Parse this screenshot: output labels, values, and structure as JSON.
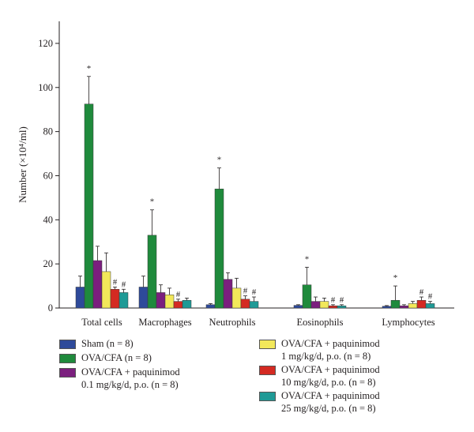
{
  "chart_data": {
    "type": "bar",
    "ylabel": "Number (×10⁴/ml)",
    "ylim": [
      0,
      130
    ],
    "yticks": [
      0,
      20,
      40,
      60,
      80,
      100,
      120
    ],
    "grid": false,
    "legend_position": "bottom",
    "categories": [
      "Total cells",
      "Macrophages",
      "Neutrophils",
      "Eosinophils",
      "Lymphocytes"
    ],
    "series": [
      {
        "name": "Sham (n = 8)",
        "color": "#2e4a9a",
        "values": [
          9.5,
          9.5,
          1.5,
          1.2,
          0.8
        ],
        "errors": [
          5.0,
          5.0,
          0.5,
          0.3,
          0.3
        ],
        "marks": [
          "",
          "",
          "",
          "",
          ""
        ]
      },
      {
        "name": "OVA/CFA (n = 8)",
        "color": "#1f8a3c",
        "values": [
          92.5,
          33.0,
          54.0,
          10.5,
          3.5
        ],
        "errors": [
          12.5,
          11.5,
          9.5,
          8.0,
          6.5
        ],
        "marks": [
          "*",
          "*",
          "*",
          "*",
          "*"
        ]
      },
      {
        "name": "OVA/CFA + paquinimod",
        "detail": "0.1 mg/kg/d, p.o. (n = 8)",
        "color": "#7b1f7e",
        "values": [
          21.5,
          7.0,
          13.0,
          3.0,
          1.0
        ],
        "errors": [
          6.5,
          3.5,
          3.0,
          2.0,
          0.5
        ],
        "marks": [
          "",
          "",
          "",
          "",
          ""
        ]
      },
      {
        "name": "OVA/CFA + paquinimod",
        "detail": "1 mg/kg/d, p.o. (n = 8)",
        "color": "#f2e85a",
        "values": [
          16.5,
          6.0,
          9.0,
          3.0,
          2.0
        ],
        "errors": [
          8.5,
          3.0,
          4.5,
          1.5,
          1.0
        ],
        "marks": [
          "",
          "",
          "",
          "",
          ""
        ]
      },
      {
        "name": "OVA/CFA + paquinimod",
        "detail": "10 mg/kg/d, p.o. (n = 8)",
        "color": "#d42a22",
        "values": [
          8.5,
          3.0,
          4.0,
          1.0,
          3.5
        ],
        "errors": [
          1.0,
          1.0,
          1.5,
          0.5,
          1.5
        ],
        "marks": [
          "#",
          "#",
          "#",
          "#",
          "#"
        ]
      },
      {
        "name": "OVA/CFA + paquinimod",
        "detail": "25 mg/kg/d, p.o. (n = 8)",
        "color": "#1f9a96",
        "values": [
          7.0,
          3.5,
          3.0,
          1.0,
          2.0
        ],
        "errors": [
          1.5,
          1.0,
          2.0,
          0.5,
          1.0
        ],
        "marks": [
          "#",
          "",
          "#",
          "#",
          "#"
        ]
      }
    ]
  }
}
